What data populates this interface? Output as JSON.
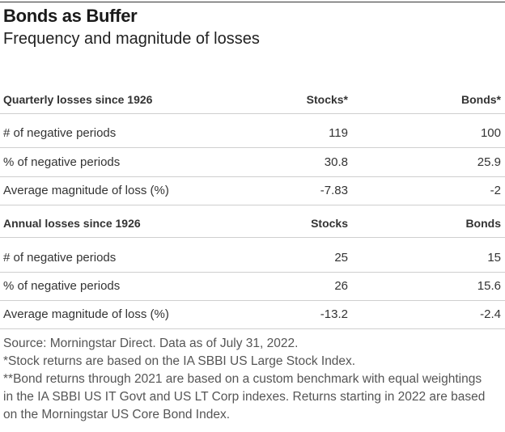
{
  "title": "Bonds as Buffer",
  "subtitle": "Frequency and magnitude of losses",
  "sections": [
    {
      "header": {
        "label": "Quarterly losses since 1926",
        "stocks": "Stocks*",
        "bonds": "Bonds*"
      },
      "rows": [
        {
          "label": "# of negative periods",
          "stocks": "119",
          "bonds": "100"
        },
        {
          "label": "% of negative periods",
          "stocks": "30.8",
          "bonds": "25.9"
        },
        {
          "label": "Average magnitude of loss (%)",
          "stocks": "-7.83",
          "bonds": "-2"
        }
      ]
    },
    {
      "header": {
        "label": "Annual losses since 1926",
        "stocks": "Stocks",
        "bonds": "Bonds"
      },
      "rows": [
        {
          "label": "# of negative periods",
          "stocks": "25",
          "bonds": "15"
        },
        {
          "label": "% of negative periods",
          "stocks": "26",
          "bonds": "15.6"
        },
        {
          "label": "Average magnitude of loss (%)",
          "stocks": "-13.2",
          "bonds": "-2.4"
        }
      ]
    }
  ],
  "notes": [
    "Source: Morningstar Direct. Data as of July 31, 2022.",
    "*Stock returns are based on the IA SBBI US Large Stock Index.",
    "**Bond returns through 2021 are based on a custom benchmark with equal weightings",
    "in the IA SBBI US IT Govt and US LT Corp indexes. Returns starting in 2022 are based",
    "on the Morningstar US Core Bond Index."
  ]
}
